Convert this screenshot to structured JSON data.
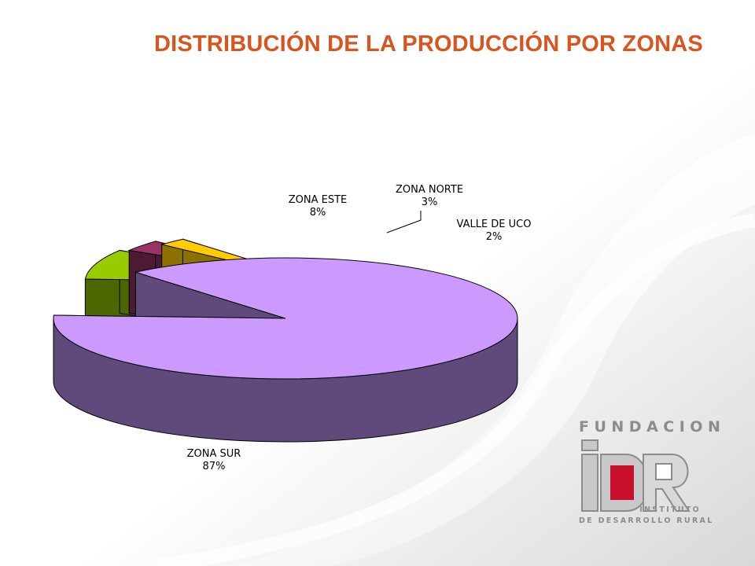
{
  "slide": {
    "title": "DISTRIBUCIÓN DE LA PRODUCCIÓN POR ZONAS"
  },
  "chart_data": {
    "type": "pie",
    "style": "3d-exploded",
    "title": "",
    "slices": [
      {
        "label": "ZONA SUR",
        "value": 87,
        "value_label": "87%",
        "color": "#cc99ff",
        "side_color": "#604a7b"
      },
      {
        "label": "ZONA ESTE",
        "value": 8,
        "value_label": "8%",
        "color": "#99cc00",
        "side_color": "#4d6600"
      },
      {
        "label": "ZONA NORTE",
        "value": 3,
        "value_label": "3%",
        "color": "#993366",
        "side_color": "#4d1a33"
      },
      {
        "label": "VALLE DE UCO",
        "value": 2,
        "value_label": "2%",
        "color": "#ffcc00",
        "side_color": "#8c7000"
      }
    ],
    "legend": "none"
  },
  "logo": {
    "top_text": "FUNDACION",
    "mark": "iDR",
    "line1": "INSTITUTO",
    "line2": "DE DESARROLLO RURAL",
    "colors": {
      "gray": "#8c8c8c",
      "red": "#c8102e"
    }
  }
}
